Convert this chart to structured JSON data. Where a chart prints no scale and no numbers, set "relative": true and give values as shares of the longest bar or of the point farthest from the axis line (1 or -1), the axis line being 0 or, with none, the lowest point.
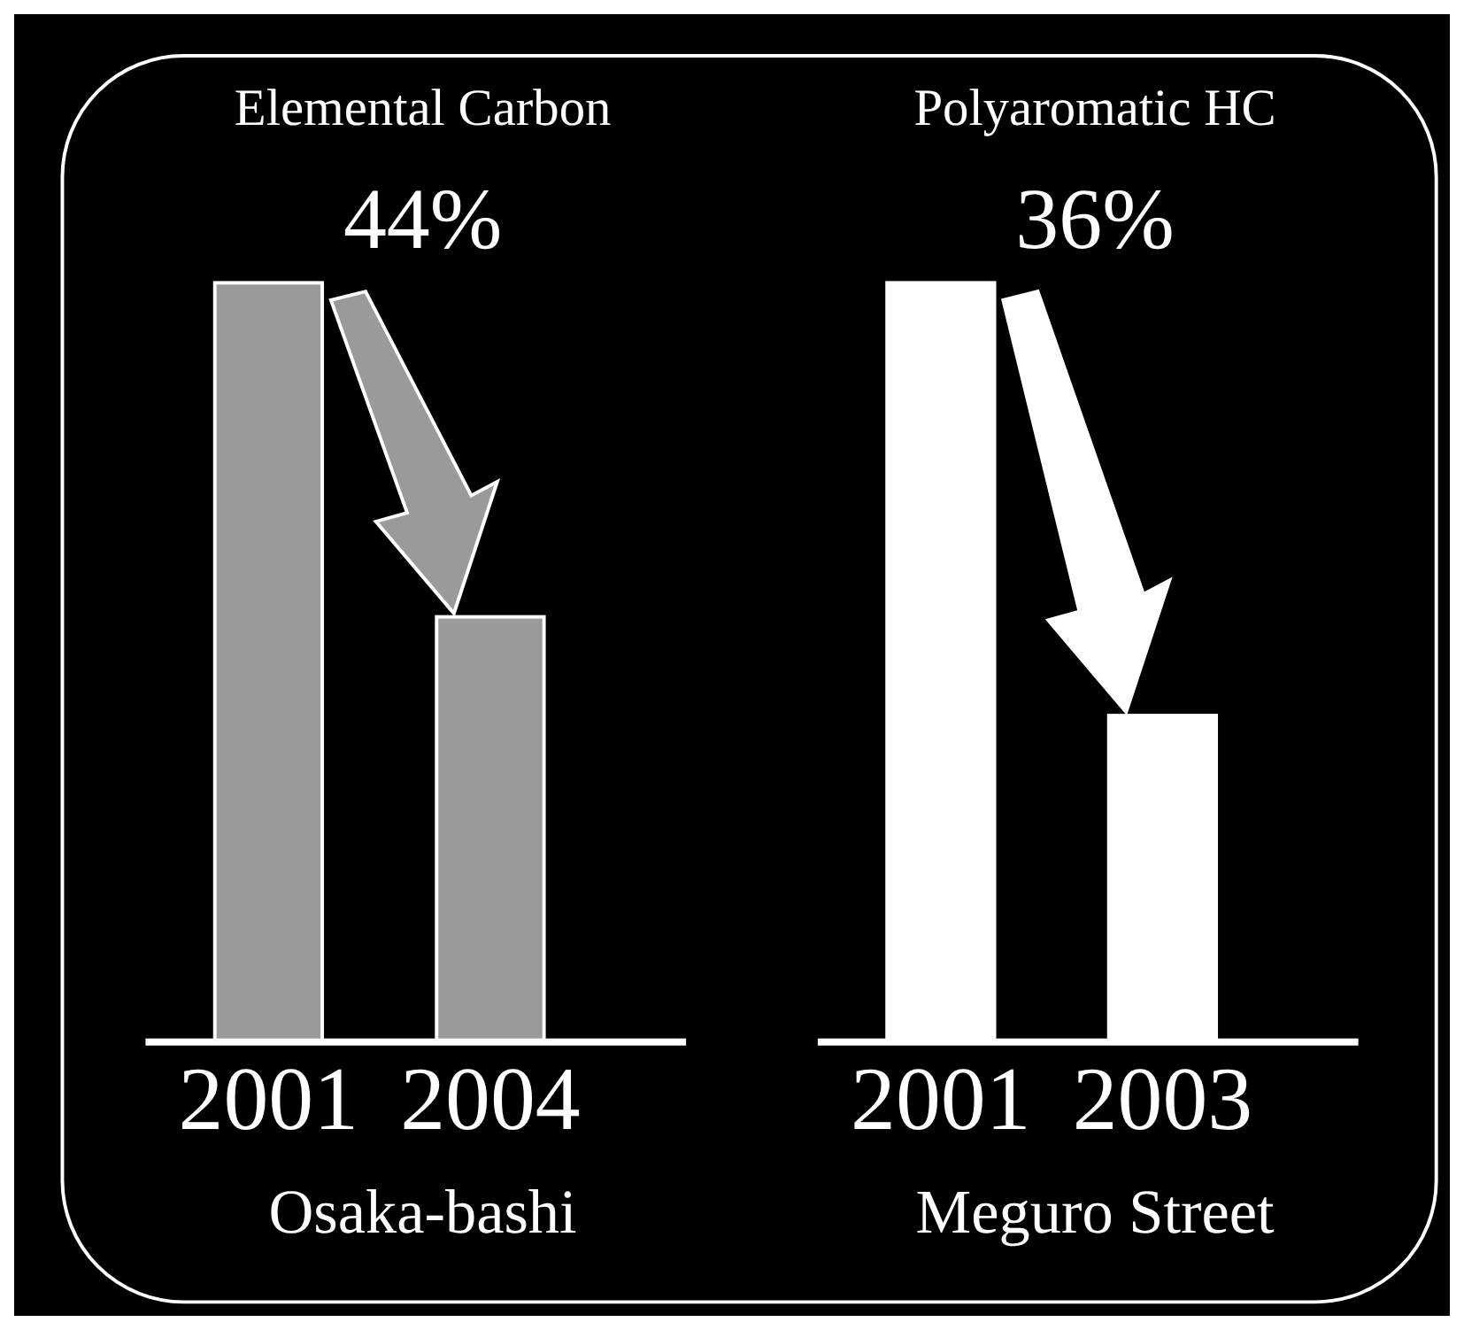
{
  "chart_data": [
    {
      "type": "bar",
      "title": "Elemental Carbon",
      "annotations": [
        "44%"
      ],
      "xlabel": "Osaka-bashi",
      "categories": [
        "2001",
        "2004"
      ],
      "values": [
        1,
        0.56
      ],
      "color": "#9a9a9a",
      "relative": true
    },
    {
      "type": "bar",
      "title": "Polyaromatic HC",
      "annotations": [
        "36%"
      ],
      "xlabel": "Meguro Street",
      "categories": [
        "2001",
        "2003"
      ],
      "values": [
        1,
        0.43
      ],
      "color": "#ffffff",
      "relative": true
    }
  ]
}
